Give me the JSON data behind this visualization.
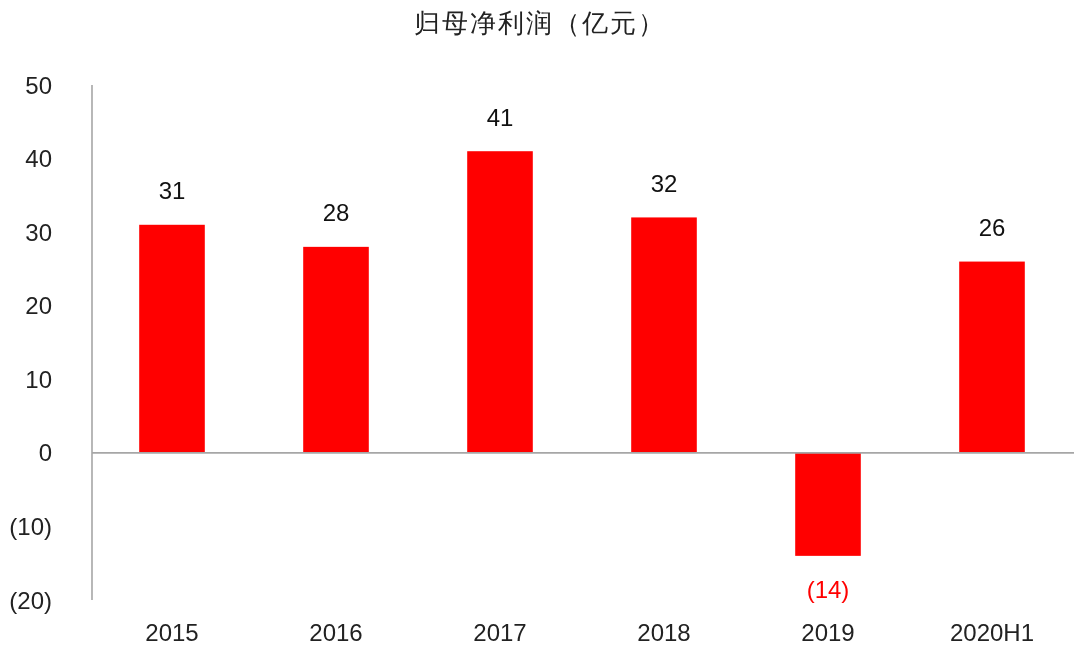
{
  "chart_data": {
    "type": "bar",
    "title": "归母净利润（亿元）",
    "categories": [
      "2015",
      "2016",
      "2017",
      "2018",
      "2019",
      "2020H1"
    ],
    "values": [
      31,
      28,
      41,
      32,
      -14,
      26
    ],
    "color": "#ff0000",
    "value_labels": [
      "31",
      "28",
      "41",
      "32",
      "(14)",
      "26"
    ],
    "ylim": [
      -20,
      50
    ],
    "yticks": [
      {
        "value": -20,
        "label": "(20)"
      },
      {
        "value": -10,
        "label": "(10)"
      },
      0,
      10,
      20,
      30,
      40,
      50
    ]
  }
}
